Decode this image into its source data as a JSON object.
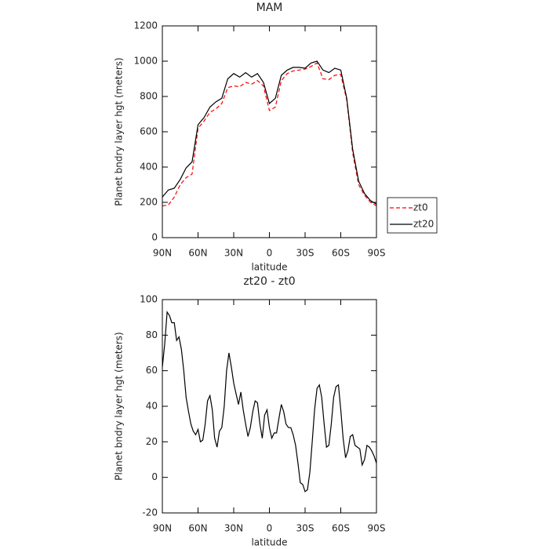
{
  "chart_data": [
    {
      "type": "line",
      "title": "MAM",
      "xlabel": "latitude",
      "ylabel": "Planet bndry layer hgt (meters)",
      "x": [
        90,
        85,
        80,
        75,
        70,
        65,
        60,
        55,
        50,
        45,
        40,
        35,
        30,
        25,
        20,
        15,
        10,
        5,
        0,
        -5,
        -10,
        -15,
        -20,
        -25,
        -30,
        -35,
        -40,
        -45,
        -50,
        -55,
        -60,
        -65,
        -70,
        -75,
        -80,
        -85,
        -90
      ],
      "series": [
        {
          "name": "zt0",
          "color": "#ff0000",
          "linestyle": "dashed",
          "values": [
            180,
            185,
            230,
            300,
            340,
            360,
            620,
            660,
            710,
            730,
            760,
            850,
            860,
            855,
            880,
            870,
            890,
            860,
            720,
            740,
            890,
            930,
            945,
            950,
            955,
            970,
            990,
            900,
            895,
            920,
            925,
            780,
            480,
            300,
            240,
            200,
            180
          ]
        },
        {
          "name": "zt20",
          "color": "#000000",
          "linestyle": "solid",
          "values": [
            230,
            270,
            280,
            330,
            395,
            430,
            640,
            680,
            740,
            770,
            790,
            900,
            930,
            910,
            935,
            910,
            930,
            880,
            760,
            790,
            920,
            950,
            965,
            965,
            960,
            990,
            1000,
            950,
            935,
            960,
            950,
            790,
            500,
            320,
            250,
            210,
            190
          ]
        }
      ],
      "xlim": [
        90,
        -90
      ],
      "xticks": [
        {
          "value": 90,
          "label": "90N"
        },
        {
          "value": 60,
          "label": "60N"
        },
        {
          "value": 30,
          "label": "30N"
        },
        0,
        {
          "value": -30,
          "label": "30S"
        },
        {
          "value": -60,
          "label": "60S"
        },
        {
          "value": -90,
          "label": "90S"
        }
      ],
      "ylim": [
        0,
        1200
      ],
      "yticks": [
        0,
        200,
        400,
        600,
        800,
        1000,
        1200
      ],
      "legend": "right"
    },
    {
      "type": "line",
      "title": "zt20 - zt0",
      "xlabel": "latitude",
      "ylabel": "Planet bndry layer hgt (meters)",
      "x": [
        90,
        88,
        86,
        84,
        82,
        80,
        78,
        76,
        74,
        72,
        70,
        68,
        66,
        64,
        62,
        60,
        58,
        56,
        54,
        52,
        50,
        48,
        46,
        44,
        42,
        40,
        38,
        36,
        34,
        32,
        30,
        28,
        26,
        24,
        22,
        20,
        18,
        16,
        14,
        12,
        10,
        8,
        6,
        4,
        2,
        0,
        -2,
        -4,
        -6,
        -8,
        -10,
        -12,
        -14,
        -16,
        -18,
        -20,
        -22,
        -24,
        -26,
        -28,
        -30,
        -32,
        -34,
        -36,
        -38,
        -40,
        -42,
        -44,
        -46,
        -48,
        -50,
        -52,
        -54,
        -56,
        -58,
        -60,
        -62,
        -64,
        -66,
        -68,
        -70,
        -72,
        -74,
        -76,
        -78,
        -80,
        -82,
        -84,
        -86,
        -88,
        -90
      ],
      "color": "#000000",
      "values": [
        62,
        75,
        93,
        91,
        87,
        87,
        77,
        79,
        72,
        60,
        45,
        37,
        30,
        26,
        24,
        27,
        20,
        21,
        30,
        43,
        46,
        38,
        22,
        17,
        26,
        28,
        40,
        60,
        70,
        62,
        53,
        47,
        41,
        48,
        38,
        30,
        23,
        28,
        37,
        43,
        42,
        30,
        22,
        35,
        38,
        28,
        22,
        25,
        25,
        33,
        41,
        37,
        30,
        28,
        28,
        24,
        18,
        8,
        -3,
        -4,
        -8,
        -7,
        3,
        20,
        38,
        50,
        52,
        45,
        30,
        17,
        18,
        30,
        45,
        51,
        52,
        38,
        22,
        11,
        15,
        23,
        24,
        18,
        17,
        16,
        7,
        10,
        18,
        17,
        15,
        12,
        8
      ],
      "xlim": [
        90,
        -90
      ],
      "xticks": [
        {
          "value": 90,
          "label": "90N"
        },
        {
          "value": 60,
          "label": "60N"
        },
        {
          "value": 30,
          "label": "30N"
        },
        0,
        {
          "value": -30,
          "label": "30S"
        },
        {
          "value": -60,
          "label": "60S"
        },
        {
          "value": -90,
          "label": "90S"
        }
      ],
      "ylim": [
        -20,
        100
      ],
      "yticks": [
        -20,
        0,
        20,
        40,
        60,
        80,
        100
      ]
    }
  ]
}
